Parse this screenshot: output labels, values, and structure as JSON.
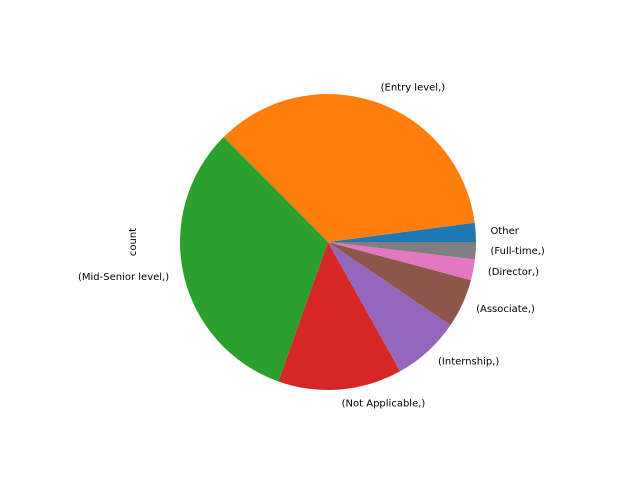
{
  "chart_data": {
    "type": "pie",
    "ylabel": "count",
    "start_angle_deg": 0,
    "direction": "counterclockwise",
    "slices": [
      {
        "label": "Other",
        "value": 2.1,
        "color": "#1f77b4"
      },
      {
        "label": "(Entry level,)",
        "value": 35.8,
        "color": "#ff7f0e"
      },
      {
        "label": "(Mid-Senior level,)",
        "value": 32.5,
        "color": "#2ca02c"
      },
      {
        "label": "(Not Applicable,)",
        "value": 13.7,
        "color": "#d62728"
      },
      {
        "label": "(Internship,)",
        "value": 7.5,
        "color": "#9467bd"
      },
      {
        "label": "(Associate,)",
        "value": 5.4,
        "color": "#8c564b"
      },
      {
        "label": "(Director,)",
        "value": 2.3,
        "color": "#e377c2"
      },
      {
        "label": "(Full-time,)",
        "value": 1.9,
        "color": "#7f7f7f"
      }
    ]
  }
}
